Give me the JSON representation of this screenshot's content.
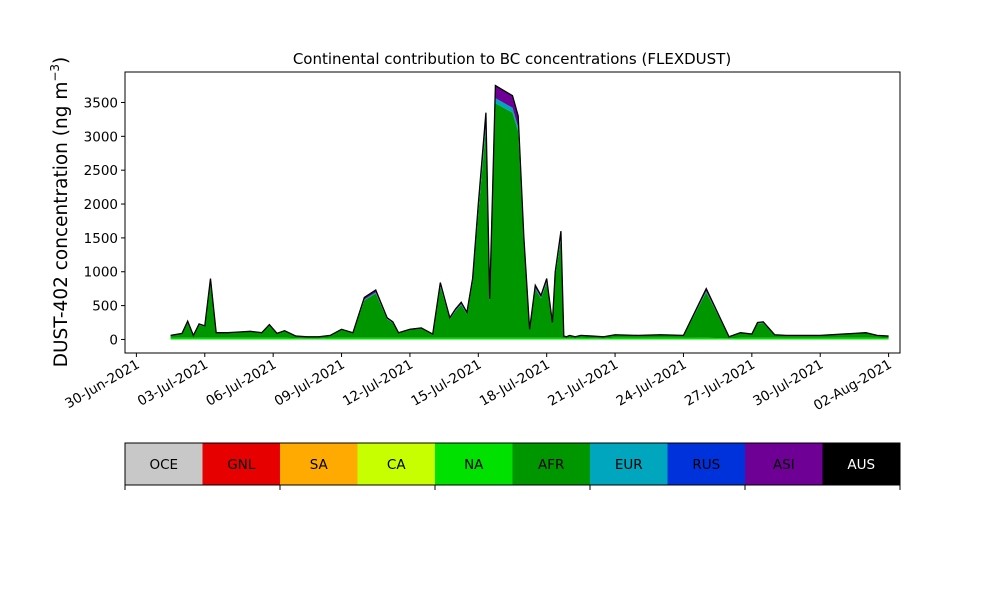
{
  "chart_data": {
    "type": "area",
    "title": "Continental contribution to BC concentrations (FLEXDUST)",
    "ylabel_main": "DUST-402 concentration (ng m",
    "ylabel_sup": "−3",
    "ylabel_close": ")",
    "xlabel": "",
    "ylim": [
      -200,
      3950
    ],
    "xlim": [
      "2021-06-29T12:00",
      "2021-08-02T12:00"
    ],
    "yticks": [
      0,
      500,
      1000,
      1500,
      2000,
      2500,
      3000,
      3500
    ],
    "xticks": [
      {
        "date": "2021-06-30",
        "label": "30-Jun-2021"
      },
      {
        "date": "2021-07-03",
        "label": "03-Jul-2021"
      },
      {
        "date": "2021-07-06",
        "label": "06-Jul-2021"
      },
      {
        "date": "2021-07-09",
        "label": "09-Jul-2021"
      },
      {
        "date": "2021-07-12",
        "label": "12-Jul-2021"
      },
      {
        "date": "2021-07-15",
        "label": "15-Jul-2021"
      },
      {
        "date": "2021-07-18",
        "label": "18-Jul-2021"
      },
      {
        "date": "2021-07-21",
        "label": "21-Jul-2021"
      },
      {
        "date": "2021-07-24",
        "label": "24-Jul-2021"
      },
      {
        "date": "2021-07-27",
        "label": "27-Jul-2021"
      },
      {
        "date": "2021-07-30",
        "label": "30-Jul-2021"
      },
      {
        "date": "2021-08-02",
        "label": "02-Aug-2021"
      }
    ],
    "x": [
      "2021-07-01T12:00",
      "2021-07-02T00:00",
      "2021-07-02T06:00",
      "2021-07-02T12:00",
      "2021-07-02T18:00",
      "2021-07-03T00:00",
      "2021-07-03T06:00",
      "2021-07-03T12:00",
      "2021-07-04T00:00",
      "2021-07-04T12:00",
      "2021-07-05T00:00",
      "2021-07-05T12:00",
      "2021-07-05T20:00",
      "2021-07-06T04:00",
      "2021-07-06T12:00",
      "2021-07-07T00:00",
      "2021-07-07T12:00",
      "2021-07-08T00:00",
      "2021-07-08T12:00",
      "2021-07-09T00:00",
      "2021-07-09T12:00",
      "2021-07-10T00:00",
      "2021-07-10T12:00",
      "2021-07-11T00:00",
      "2021-07-11T06:00",
      "2021-07-11T12:00",
      "2021-07-12T00:00",
      "2021-07-12T12:00",
      "2021-07-13T00:00",
      "2021-07-13T08:00",
      "2021-07-13T18:00",
      "2021-07-14T00:00",
      "2021-07-14T06:00",
      "2021-07-14T12:00",
      "2021-07-14T18:00",
      "2021-07-15T00:00",
      "2021-07-15T08:00",
      "2021-07-15T12:00",
      "2021-07-15T18:00",
      "2021-07-16T00:00",
      "2021-07-16T06:00",
      "2021-07-16T12:00",
      "2021-07-16T18:00",
      "2021-07-17T00:00",
      "2021-07-17T06:00",
      "2021-07-17T12:00",
      "2021-07-17T18:00",
      "2021-07-18T00:00",
      "2021-07-18T06:00",
      "2021-07-18T09:00",
      "2021-07-18T12:00",
      "2021-07-18T15:00",
      "2021-07-18T18:00",
      "2021-07-18T21:00",
      "2021-07-19T00:00",
      "2021-07-19T06:00",
      "2021-07-19T12:00",
      "2021-07-20T00:00",
      "2021-07-20T12:00",
      "2021-07-21T00:00",
      "2021-07-22T00:00",
      "2021-07-23T00:00",
      "2021-07-24T00:00",
      "2021-07-25T00:00",
      "2021-07-26T00:00",
      "2021-07-26T12:00",
      "2021-07-27T00:00",
      "2021-07-27T06:00",
      "2021-07-27T12:00",
      "2021-07-28T00:00",
      "2021-07-28T12:00",
      "2021-07-29T00:00",
      "2021-07-30T00:00",
      "2021-07-31T00:00",
      "2021-07-31T12:00",
      "2021-08-01T00:00",
      "2021-08-01T12:00",
      "2021-08-02T00:00"
    ],
    "total": [
      60,
      90,
      270,
      60,
      230,
      200,
      900,
      100,
      100,
      110,
      120,
      100,
      220,
      90,
      130,
      50,
      40,
      40,
      60,
      150,
      100,
      620,
      730,
      320,
      260,
      100,
      150,
      170,
      80,
      840,
      320,
      450,
      550,
      400,
      900,
      2000,
      3350,
      600,
      3750,
      3700,
      3650,
      3600,
      3300,
      1500,
      150,
      800,
      650,
      900,
      250,
      1000,
      1300,
      1600,
      50,
      40,
      60,
      40,
      60,
      50,
      40,
      70,
      60,
      70,
      60,
      750,
      40,
      100,
      80,
      250,
      260,
      70,
      60,
      60,
      60,
      80,
      90,
      100,
      60,
      50
    ],
    "afr_fraction": 0.93,
    "series": [
      {
        "name": "OCE",
        "color": "#c8c8c8"
      },
      {
        "name": "GNL",
        "color": "#e60000"
      },
      {
        "name": "SA",
        "color": "#ffaa00"
      },
      {
        "name": "CA",
        "color": "#c8ff00"
      },
      {
        "name": "NA",
        "color": "#00e100"
      },
      {
        "name": "AFR",
        "color": "#009600"
      },
      {
        "name": "EUR",
        "color": "#00a5be"
      },
      {
        "name": "RUS",
        "color": "#0032dc"
      },
      {
        "name": "ASI",
        "color": "#6e0096"
      },
      {
        "name": "AUS",
        "color": "#000000"
      }
    ],
    "legend_placement": "bottom",
    "grid": false
  }
}
